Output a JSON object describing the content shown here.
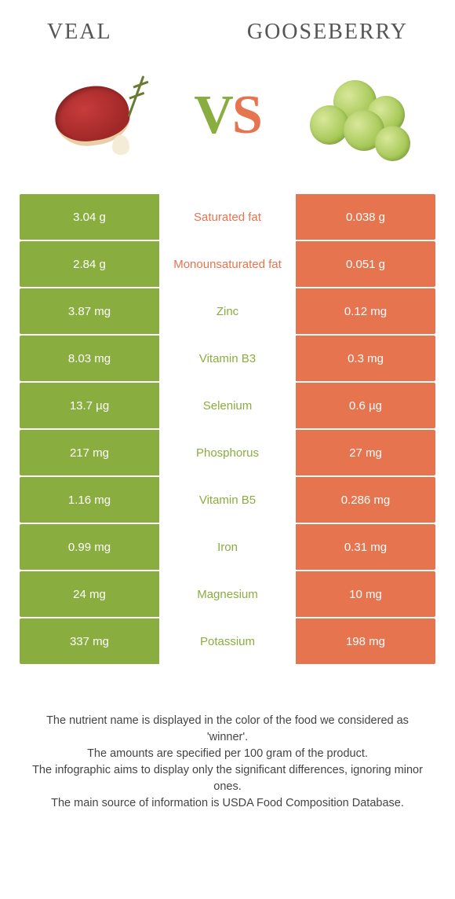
{
  "title_left": "Veal",
  "title_right": "Gooseberry",
  "vs_left_letter": "V",
  "vs_right_letter": "S",
  "colors": {
    "left_bg": "#8aad3f",
    "right_bg": "#e6744e",
    "mid_left_text": "#e6744e",
    "mid_right_text": "#8aad3f",
    "page_bg": "#ffffff"
  },
  "rows": [
    {
      "name": "Saturated fat",
      "left": "3.04 g",
      "right": "0.038 g",
      "winner": "left"
    },
    {
      "name": "Monounsaturated fat",
      "left": "2.84 g",
      "right": "0.051 g",
      "winner": "left"
    },
    {
      "name": "Zinc",
      "left": "3.87 mg",
      "right": "0.12 mg",
      "winner": "right"
    },
    {
      "name": "Vitamin B3",
      "left": "8.03 mg",
      "right": "0.3 mg",
      "winner": "right"
    },
    {
      "name": "Selenium",
      "left": "13.7 µg",
      "right": "0.6 µg",
      "winner": "right"
    },
    {
      "name": "Phosphorus",
      "left": "217 mg",
      "right": "27 mg",
      "winner": "right"
    },
    {
      "name": "Vitamin B5",
      "left": "1.16 mg",
      "right": "0.286 mg",
      "winner": "right"
    },
    {
      "name": "Iron",
      "left": "0.99 mg",
      "right": "0.31 mg",
      "winner": "right"
    },
    {
      "name": "Magnesium",
      "left": "24 mg",
      "right": "10 mg",
      "winner": "right"
    },
    {
      "name": "Potassium",
      "left": "337 mg",
      "right": "198 mg",
      "winner": "right"
    }
  ],
  "footer": {
    "line1": "The nutrient name is displayed in the color of the food we considered as 'winner'.",
    "line2": "The amounts are specified per 100 gram of the product.",
    "line3": "The infographic aims to display only the significant differences, ignoring minor ones.",
    "line4": "The main source of information is USDA Food Composition Database."
  }
}
